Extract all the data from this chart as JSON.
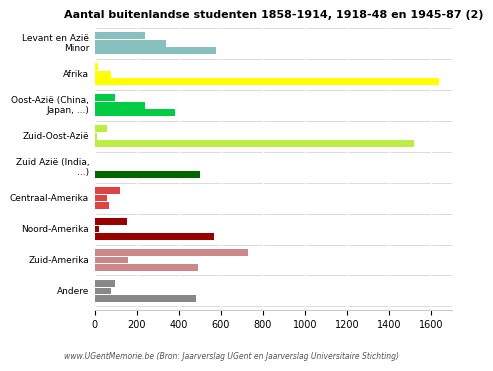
{
  "title": "Aantal buitenlandse studenten 1858-1914, 1918-48 en 1945-87 (2)",
  "footer": "www.UGentMemorie.be (Bron: Jaarverslag UGent en Jaarverslag Universitaire Stichting)",
  "categories": [
    "Levant en Azië\nMinor",
    "Afrika",
    "Oost-Azië (China,\nJapan, ...)",
    "Zuid-Oost-Azië",
    "Zuid Azië (India,\n...)",
    "Centraal-Amerika",
    "Noord-Amerika",
    "Zuid-Amerika",
    "Andere"
  ],
  "values": [
    [
      240,
      340,
      575
    ],
    [
      15,
      80,
      1640
    ],
    [
      95,
      240,
      380
    ],
    [
      60,
      10,
      1520
    ],
    [
      0,
      0,
      500
    ],
    [
      120,
      60,
      70
    ],
    [
      155,
      20,
      570
    ],
    [
      730,
      160,
      490
    ],
    [
      95,
      80,
      480
    ]
  ],
  "cat_colors": [
    "#88bfbf",
    "#ffff00",
    "#00cc44",
    "#bbee44",
    "#006600",
    "#dd4444",
    "#990000",
    "#cc8888",
    "#888888"
  ],
  "xlim": [
    0,
    1700
  ],
  "xticks": [
    0,
    200,
    400,
    600,
    800,
    1000,
    1200,
    1400,
    1600
  ],
  "background_color": "#ffffff",
  "separator_color": "#cccccc",
  "grid_color": "#ffffff"
}
